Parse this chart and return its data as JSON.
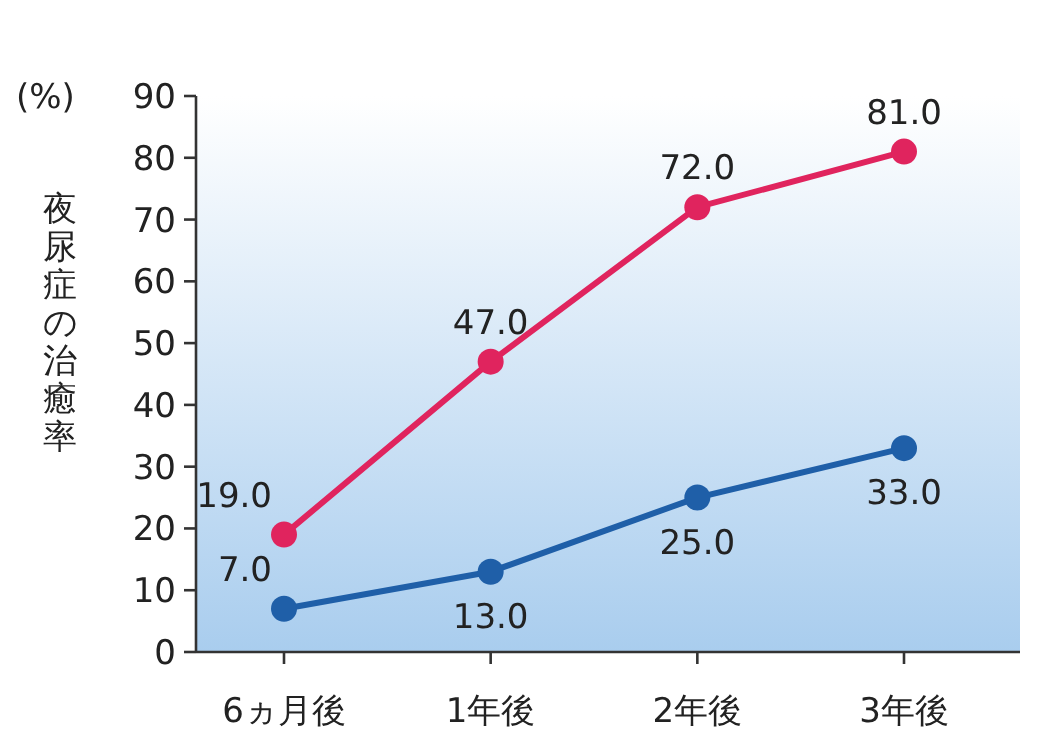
{
  "chart_data": {
    "type": "line",
    "categories": [
      "6ヵ月後",
      "1年後",
      "2年後",
      "3年後"
    ],
    "series": [
      {
        "color": "#e0245e",
        "values": [
          19,
          47,
          72,
          81
        ],
        "value_labels": [
          "19.0",
          "47.0",
          "72.0",
          "81.0"
        ]
      },
      {
        "color": "#1f5fa8",
        "values": [
          7,
          13,
          25,
          33
        ],
        "value_labels": [
          "7.0",
          "13.0",
          "25.0",
          "33.0"
        ]
      }
    ],
    "ylabel": "夜尿症の治癒率",
    "annotations": [
      "(%)"
    ],
    "ylim": [
      0,
      90
    ],
    "yticks": [
      0,
      10,
      20,
      30,
      40,
      50,
      60,
      70,
      80,
      90
    ],
    "marker": "circle",
    "grid": false
  }
}
